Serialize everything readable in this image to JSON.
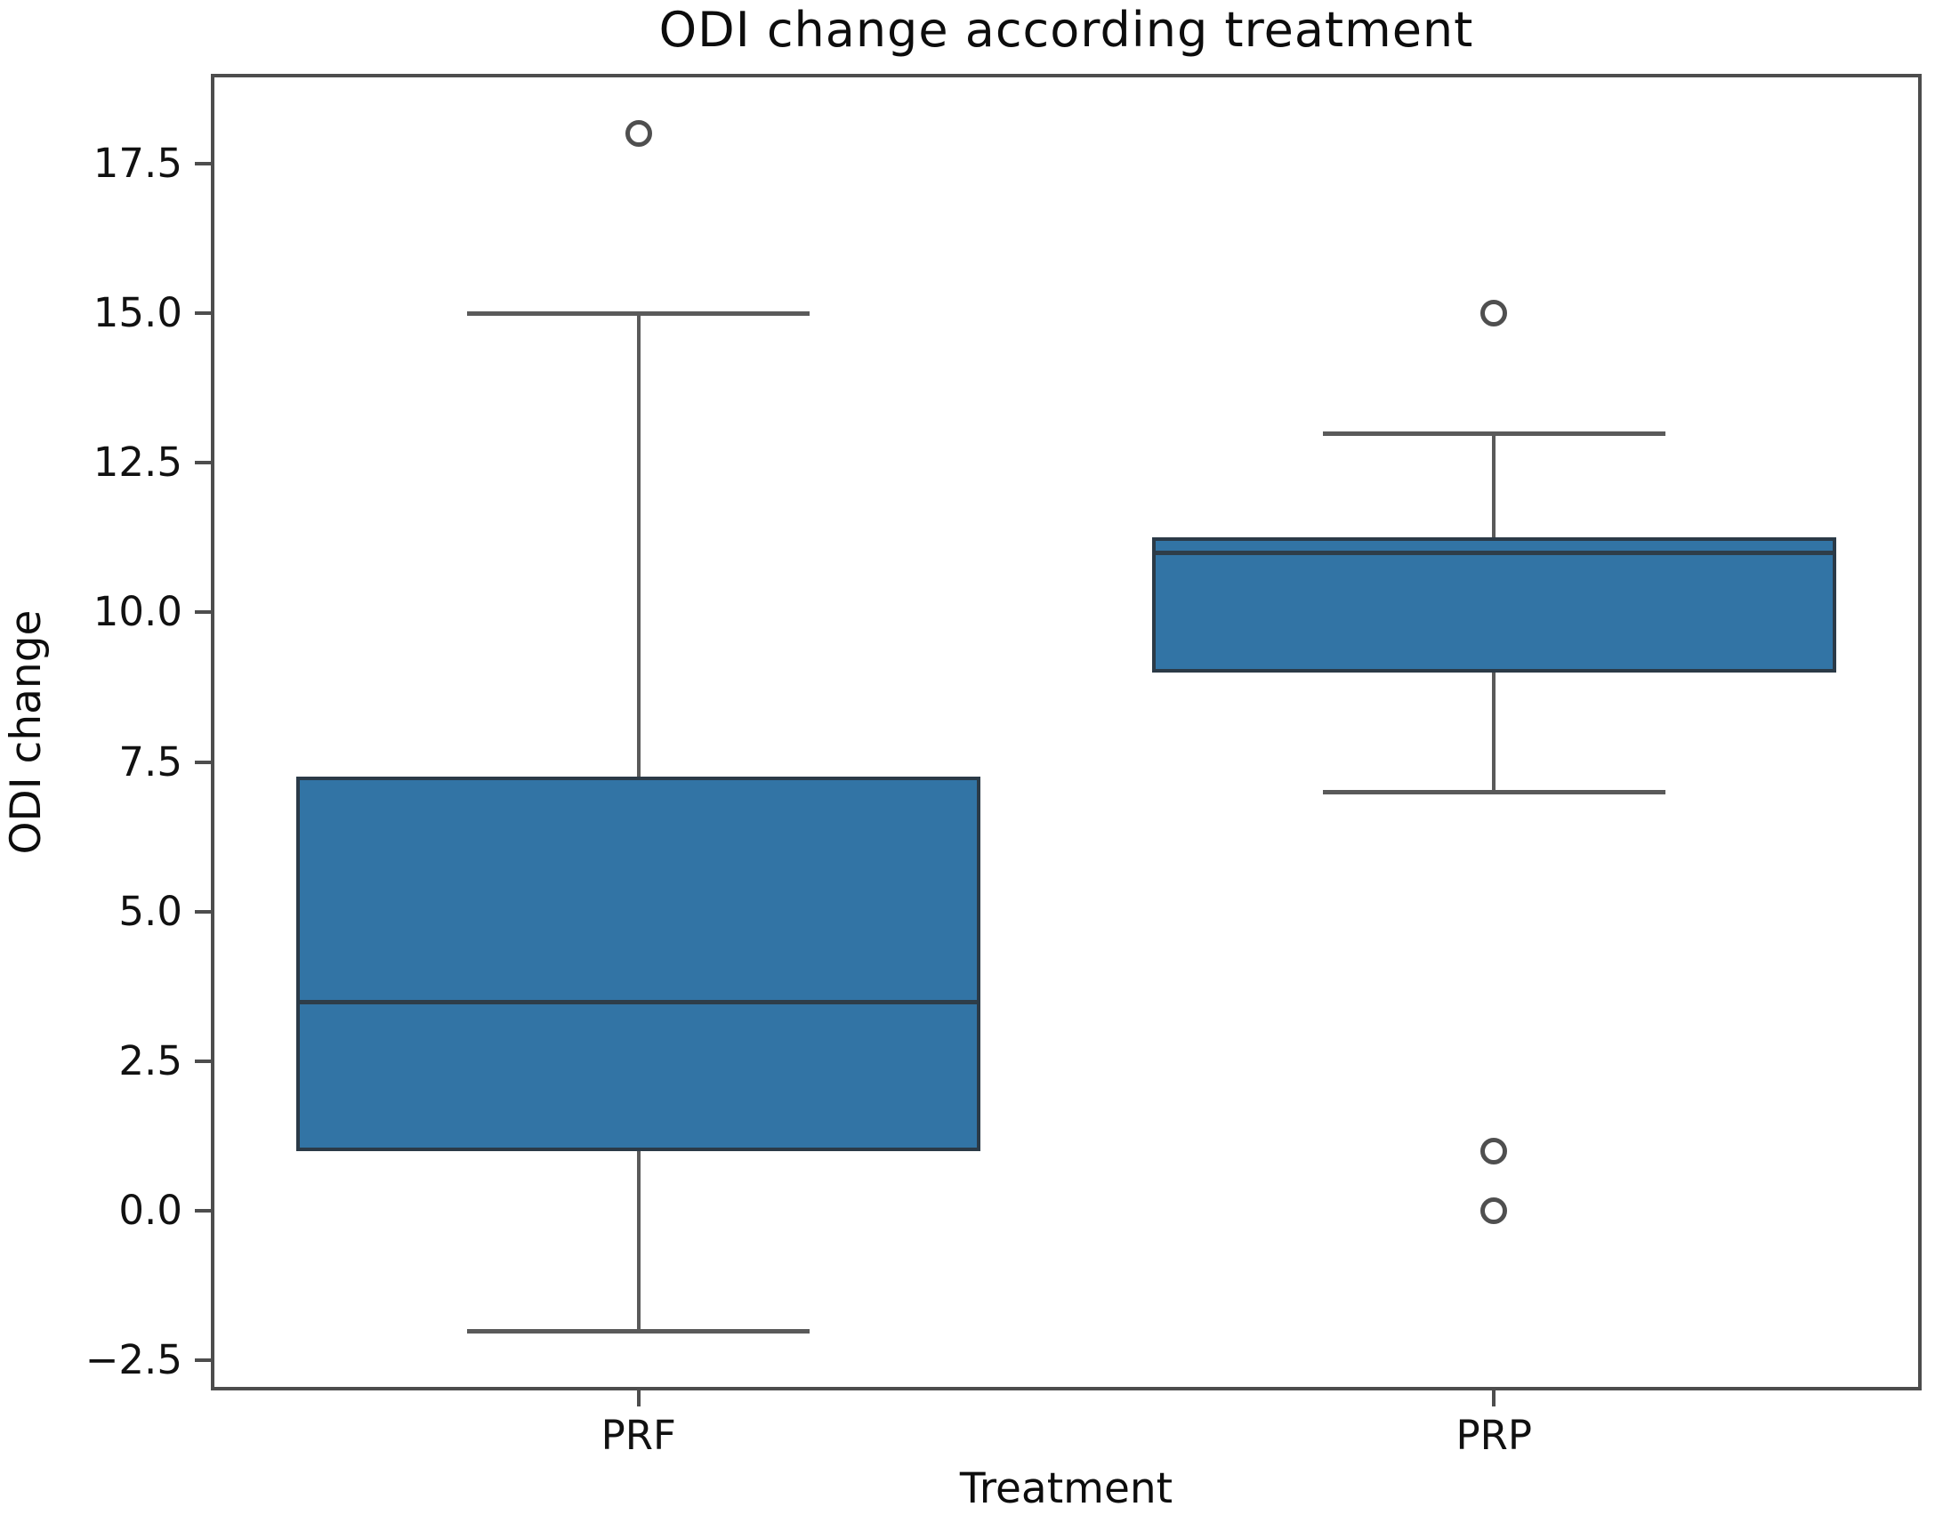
{
  "chart_data": {
    "type": "boxplot",
    "title": "ODI change according treatment",
    "xlabel": "Treatment",
    "ylabel": "ODI change",
    "categories": [
      "PRF",
      "PRP"
    ],
    "series": [
      {
        "name": "PRF",
        "whisker_low": -2.0,
        "q1": 1.0,
        "median": 3.5,
        "q3": 7.25,
        "whisker_high": 15.0,
        "outliers": [
          18.0
        ]
      },
      {
        "name": "PRP",
        "whisker_low": 7.0,
        "q1": 9.0,
        "median": 11.0,
        "q3": 11.25,
        "whisker_high": 13.0,
        "outliers": [
          15.0,
          1.0,
          0.0
        ]
      }
    ],
    "ylim": [
      -3.0,
      19.0
    ],
    "yticks": [
      17.5,
      15.0,
      12.5,
      10.0,
      7.5,
      5.0,
      2.5,
      0.0,
      -2.5
    ],
    "ytick_labels": [
      "17.5",
      "15.0",
      "12.5",
      "10.0",
      "7.5",
      "5.0",
      "2.5",
      "0.0",
      "−2.5"
    ],
    "grid": false,
    "legend": false,
    "colors": {
      "box_fill": "#3274a5",
      "box_edge": "#2b3a47",
      "median": "#2e3d49",
      "whisker": "#5a5a5a",
      "spine": "#4d4d4d",
      "outlier_edge": "#4f4f4f",
      "text": "#111111",
      "background": "#ffffff"
    }
  }
}
